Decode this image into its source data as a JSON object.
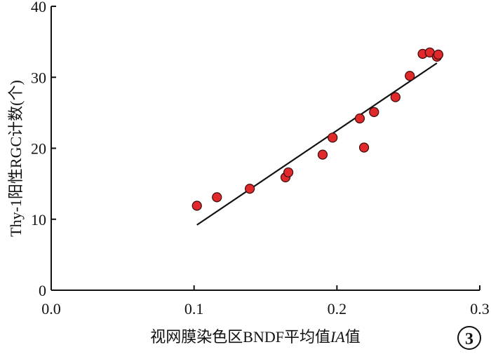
{
  "chart_data": {
    "type": "scatter",
    "title": "",
    "xlabel": "视网膜染色区BNDF平均值IA值",
    "xlabel_parts": [
      {
        "text": "视网膜染色区BNDF平均值",
        "italic": false
      },
      {
        "text": "IA",
        "italic": true
      },
      {
        "text": "值",
        "italic": false
      }
    ],
    "ylabel": "Thy-1阳性RGC计数(个)",
    "xlim": [
      0.0,
      0.3
    ],
    "ylim": [
      0,
      40
    ],
    "xticks": [
      0.0,
      0.1,
      0.2,
      0.3
    ],
    "xtick_labels": [
      "0.0",
      "0.1",
      "0.2",
      "0.3"
    ],
    "yticks": [
      0,
      10,
      20,
      30,
      40
    ],
    "ytick_labels": [
      "0",
      "10",
      "20",
      "30",
      "40"
    ],
    "grid": false,
    "marker_color": "#e0292b",
    "marker_edge": "#3a0a0a",
    "line_color": "#111111",
    "points": [
      {
        "x": 0.102,
        "y": 11.9
      },
      {
        "x": 0.116,
        "y": 13.1
      },
      {
        "x": 0.139,
        "y": 14.3
      },
      {
        "x": 0.164,
        "y": 15.9
      },
      {
        "x": 0.166,
        "y": 16.6
      },
      {
        "x": 0.19,
        "y": 19.1
      },
      {
        "x": 0.197,
        "y": 21.5
      },
      {
        "x": 0.216,
        "y": 24.2
      },
      {
        "x": 0.219,
        "y": 20.1
      },
      {
        "x": 0.226,
        "y": 25.1
      },
      {
        "x": 0.241,
        "y": 27.2
      },
      {
        "x": 0.251,
        "y": 30.2
      },
      {
        "x": 0.26,
        "y": 33.3
      },
      {
        "x": 0.265,
        "y": 33.5
      },
      {
        "x": 0.27,
        "y": 32.9
      },
      {
        "x": 0.271,
        "y": 33.2
      }
    ],
    "fit_line": {
      "x": [
        0.102,
        0.27
      ],
      "y": [
        9.2,
        32.0
      ]
    }
  },
  "panel_label": "3"
}
